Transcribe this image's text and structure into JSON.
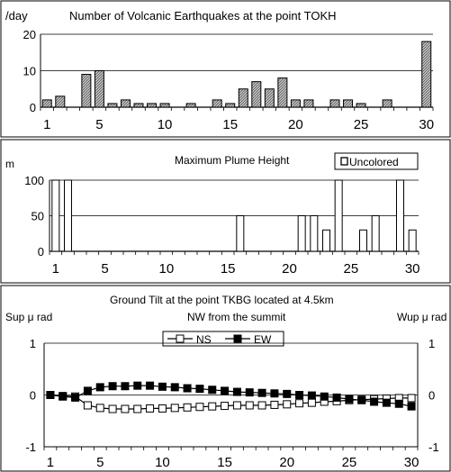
{
  "chart_data": [
    {
      "type": "bar",
      "title": "Number of Volcanic Earthquakes at the point TOKH",
      "ylabel": "/day",
      "ylim": [
        0,
        20
      ],
      "yticks": [
        0,
        10,
        20
      ],
      "xticks": [
        1,
        5,
        10,
        15,
        20,
        25,
        30
      ],
      "x": [
        1,
        2,
        3,
        4,
        5,
        6,
        7,
        8,
        9,
        10,
        11,
        12,
        13,
        14,
        15,
        16,
        17,
        18,
        19,
        20,
        21,
        22,
        23,
        24,
        25,
        26,
        27,
        28,
        29,
        30
      ],
      "values": [
        2,
        3,
        0,
        9,
        10,
        1,
        2,
        1,
        1,
        1,
        0,
        1,
        0,
        2,
        1,
        5,
        7,
        5,
        8,
        2,
        2,
        0,
        2,
        2,
        1,
        0,
        2,
        0,
        0,
        18
      ],
      "grid": true,
      "bar_fill": "#a9a9a9"
    },
    {
      "type": "bar",
      "title": "Maximum Plume Height",
      "ylabel": "m",
      "legend": [
        "Uncolored"
      ],
      "legend_position": "top-right",
      "ylim": [
        0,
        100
      ],
      "yticks": [
        0,
        50,
        100
      ],
      "xticks": [
        1,
        5,
        10,
        15,
        20,
        25,
        30
      ],
      "x": [
        1,
        2,
        3,
        4,
        5,
        6,
        7,
        8,
        9,
        10,
        11,
        12,
        13,
        14,
        15,
        16,
        17,
        18,
        19,
        20,
        21,
        22,
        23,
        24,
        25,
        26,
        27,
        28,
        29,
        30
      ],
      "values": [
        100,
        100,
        0,
        0,
        0,
        0,
        0,
        0,
        0,
        0,
        0,
        0,
        0,
        0,
        0,
        50,
        0,
        0,
        0,
        0,
        50,
        50,
        30,
        100,
        0,
        30,
        50,
        0,
        100,
        30
      ],
      "grid": true,
      "bar_fill": "#ffffff"
    },
    {
      "type": "line",
      "title": "Ground Tilt at the point TKBG located at 4.5km",
      "subtitle": "NW from the summit",
      "ylabel": "Sup μ rad",
      "ylabel_right": "Wup μ rad",
      "ylim": [
        -1,
        1
      ],
      "yticks": [
        -1,
        0,
        1
      ],
      "xticks": [
        1,
        5,
        10,
        15,
        20,
        25,
        30
      ],
      "x": [
        1,
        2,
        3,
        4,
        5,
        6,
        7,
        8,
        9,
        10,
        11,
        12,
        13,
        14,
        15,
        16,
        17,
        18,
        19,
        20,
        21,
        22,
        23,
        24,
        25,
        26,
        27,
        28,
        29,
        30
      ],
      "series": [
        {
          "name": "NS",
          "marker": "open-square",
          "values": [
            0,
            -0.02,
            -0.03,
            -0.2,
            -0.25,
            -0.27,
            -0.27,
            -0.27,
            -0.26,
            -0.26,
            -0.25,
            -0.24,
            -0.23,
            -0.22,
            -0.21,
            -0.2,
            -0.2,
            -0.2,
            -0.19,
            -0.18,
            -0.16,
            -0.15,
            -0.13,
            -0.12,
            -0.1,
            -0.09,
            -0.08,
            -0.07,
            -0.06,
            -0.06
          ]
        },
        {
          "name": "EW",
          "marker": "filled-square",
          "values": [
            0,
            -0.03,
            -0.05,
            0.08,
            0.15,
            0.17,
            0.17,
            0.18,
            0.18,
            0.16,
            0.15,
            0.13,
            0.12,
            0.1,
            0.08,
            0.06,
            0.05,
            0.04,
            0.03,
            0.02,
            0.0,
            -0.01,
            -0.03,
            -0.05,
            -0.08,
            -0.1,
            -0.13,
            -0.15,
            -0.17,
            -0.22
          ]
        }
      ],
      "legend_position": "top-center",
      "grid": true
    }
  ]
}
